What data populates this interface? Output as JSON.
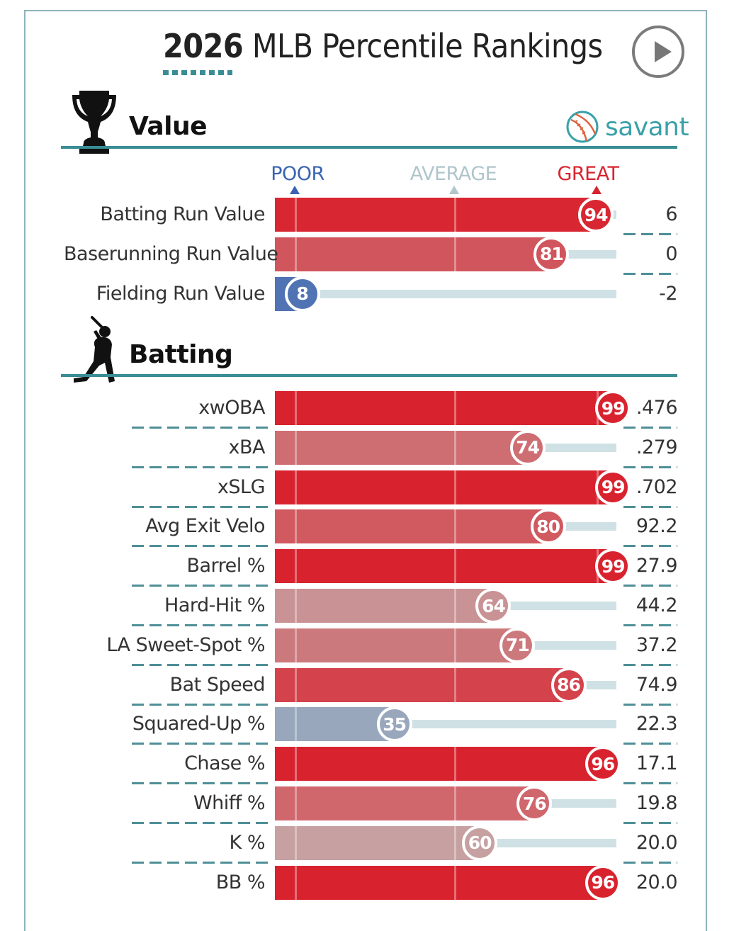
{
  "header": {
    "title_year": "2026",
    "title_rest": " MLB Percentile Rankings"
  },
  "brand": {
    "savant": "savant"
  },
  "scale": {
    "poor": "POOR",
    "average": "AVERAGE",
    "great": "GREAT"
  },
  "colors": {
    "teal": "#3a8d94",
    "poor_blue": "#3a64b1",
    "average_gray": "#b0c6cc",
    "great_red": "#d8232f"
  },
  "chart_data": [
    {
      "type": "bar",
      "title": "Value",
      "xlim": [
        0,
        100
      ],
      "categories": [
        "Batting Run Value",
        "Baserunning Run Value",
        "Fielding Run Value"
      ],
      "percentiles": [
        94,
        81,
        8
      ],
      "values": [
        "6",
        "0",
        "-2"
      ]
    },
    {
      "type": "bar",
      "title": "Batting",
      "xlim": [
        0,
        100
      ],
      "categories": [
        "xwOBA",
        "xBA",
        "xSLG",
        "Avg Exit Velo",
        "Barrel %",
        "Hard-Hit %",
        "LA Sweet-Spot %",
        "Bat Speed",
        "Squared-Up %",
        "Chase %",
        "Whiff %",
        "K %",
        "BB %"
      ],
      "percentiles": [
        99,
        74,
        99,
        80,
        99,
        64,
        71,
        86,
        35,
        96,
        76,
        60,
        96
      ],
      "values": [
        ".476",
        ".279",
        ".702",
        "92.2",
        "27.9",
        "44.2",
        "37.2",
        "74.9",
        "22.3",
        "17.1",
        "19.8",
        "20.0",
        "20.0"
      ]
    }
  ]
}
